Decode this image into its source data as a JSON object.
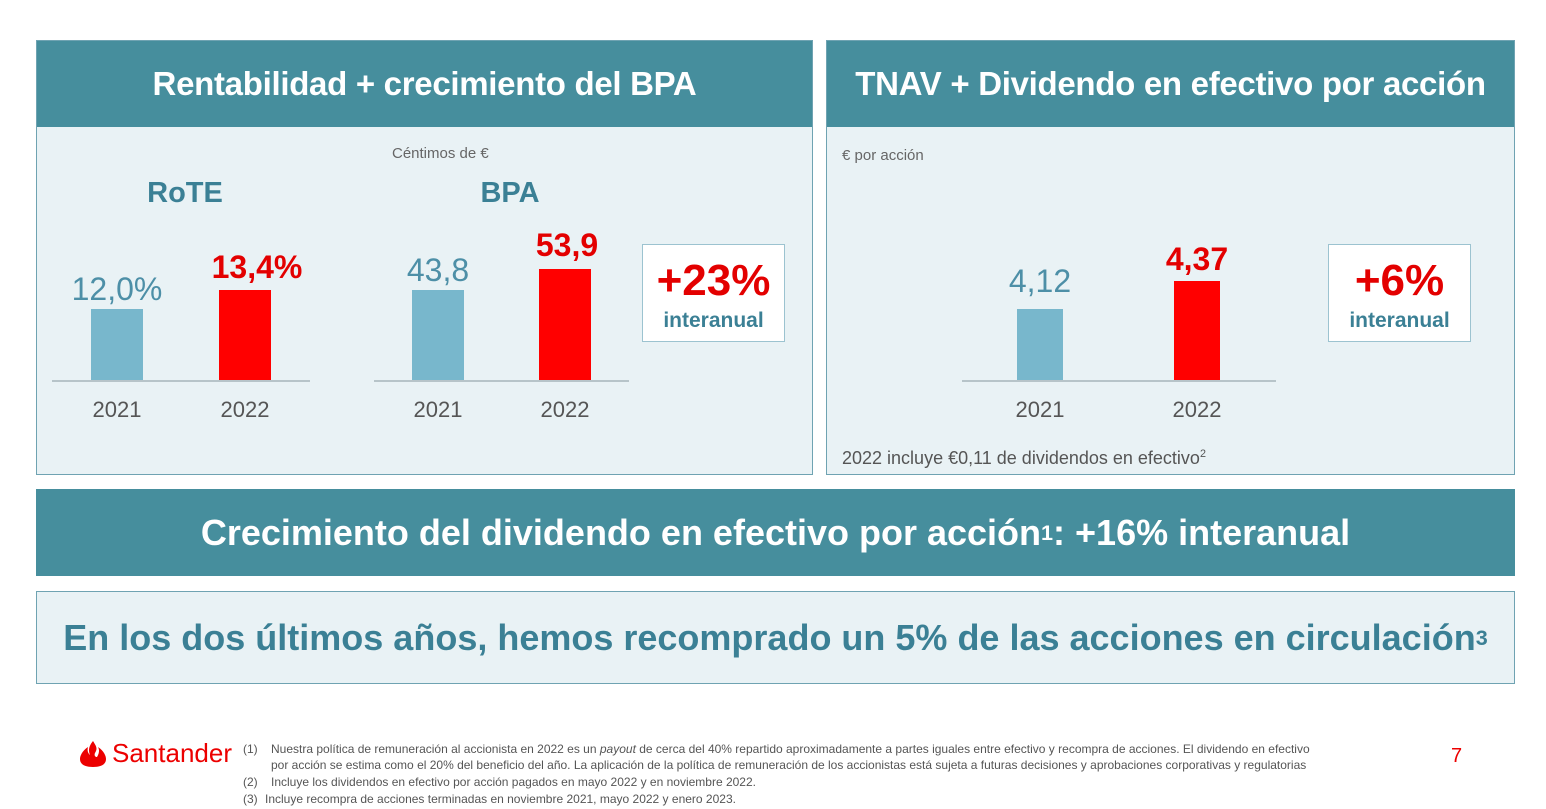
{
  "left_panel": {
    "title": "Rentabilidad + crecimiento del BPA",
    "unit": "Céntimos de €",
    "rote": {
      "title": "RoTE",
      "value_2021": "12,0%",
      "value_2022": "13,4%",
      "year_2021": "2021",
      "year_2022": "2022"
    },
    "bpa": {
      "title": "BPA",
      "value_2021": "43,8",
      "value_2022": "53,9",
      "year_2021": "2021",
      "year_2022": "2022"
    },
    "growth": {
      "pct": "+23%",
      "label": "interanual"
    }
  },
  "right_panel": {
    "title": "TNAV + Dividendo en efectivo por acción",
    "unit": "€ por acción",
    "value_2021": "4,12",
    "value_2022": "4,37",
    "year_2021": "2021",
    "year_2022": "2022",
    "growth": {
      "pct": "+6%",
      "label": "interanual"
    },
    "note": "2022 incluye €0,11 de dividendos en efectivo",
    "note_sup": "2"
  },
  "chart_data": [
    {
      "type": "bar",
      "title": "RoTE",
      "categories": [
        "2021",
        "2022"
      ],
      "values": [
        12.0,
        13.4
      ],
      "unit": "%"
    },
    {
      "type": "bar",
      "title": "BPA",
      "categories": [
        "2021",
        "2022"
      ],
      "values": [
        43.8,
        53.9
      ],
      "unit": "Céntimos de €"
    },
    {
      "type": "bar",
      "title": "TNAV + Dividendo en efectivo por acción",
      "categories": [
        "2021",
        "2022"
      ],
      "values": [
        4.12,
        4.37
      ],
      "unit": "€ por acción"
    }
  ],
  "banner": {
    "text_a": "Crecimiento del dividendo en efectivo por acción",
    "sup": "1",
    "text_b": ": +16% interanual"
  },
  "banner2": {
    "text": "En los dos últimos años, hemos recomprado un 5% de las acciones en circulación",
    "sup": "3"
  },
  "footer": {
    "brand": "Santander",
    "page_number": "7",
    "notes": [
      {
        "num": "(1)",
        "text_a": "Nuestra política de remuneración al accionista en 2022  es un ",
        "text_italic": "payout",
        "text_b": " de cerca del 40% repartido aproximadamente a partes iguales entre efectivo y recompra de acciones. El dividendo en efectivo",
        "text_c": "por acción se estima como el 20% del beneficio del año. La aplicación de la política de remuneración de los accionistas está sujeta a futuras decisiones y aprobaciones corporativas y regulatorias"
      },
      {
        "num": "(2)",
        "text": "Incluye los dividendos en efectivo por acción pagados en mayo 2022 y en noviembre 2022."
      },
      {
        "num": "(3)",
        "text": "Incluye recompra de acciones terminadas en noviembre 2021, mayo 2022 y enero 2023."
      }
    ]
  },
  "colors": {
    "teal_header": "#468e9d",
    "panel_bg": "#e9f2f5",
    "bar_2021": "#78b7cc",
    "bar_2022": "#ff0000",
    "brand_red": "#ec0000"
  }
}
